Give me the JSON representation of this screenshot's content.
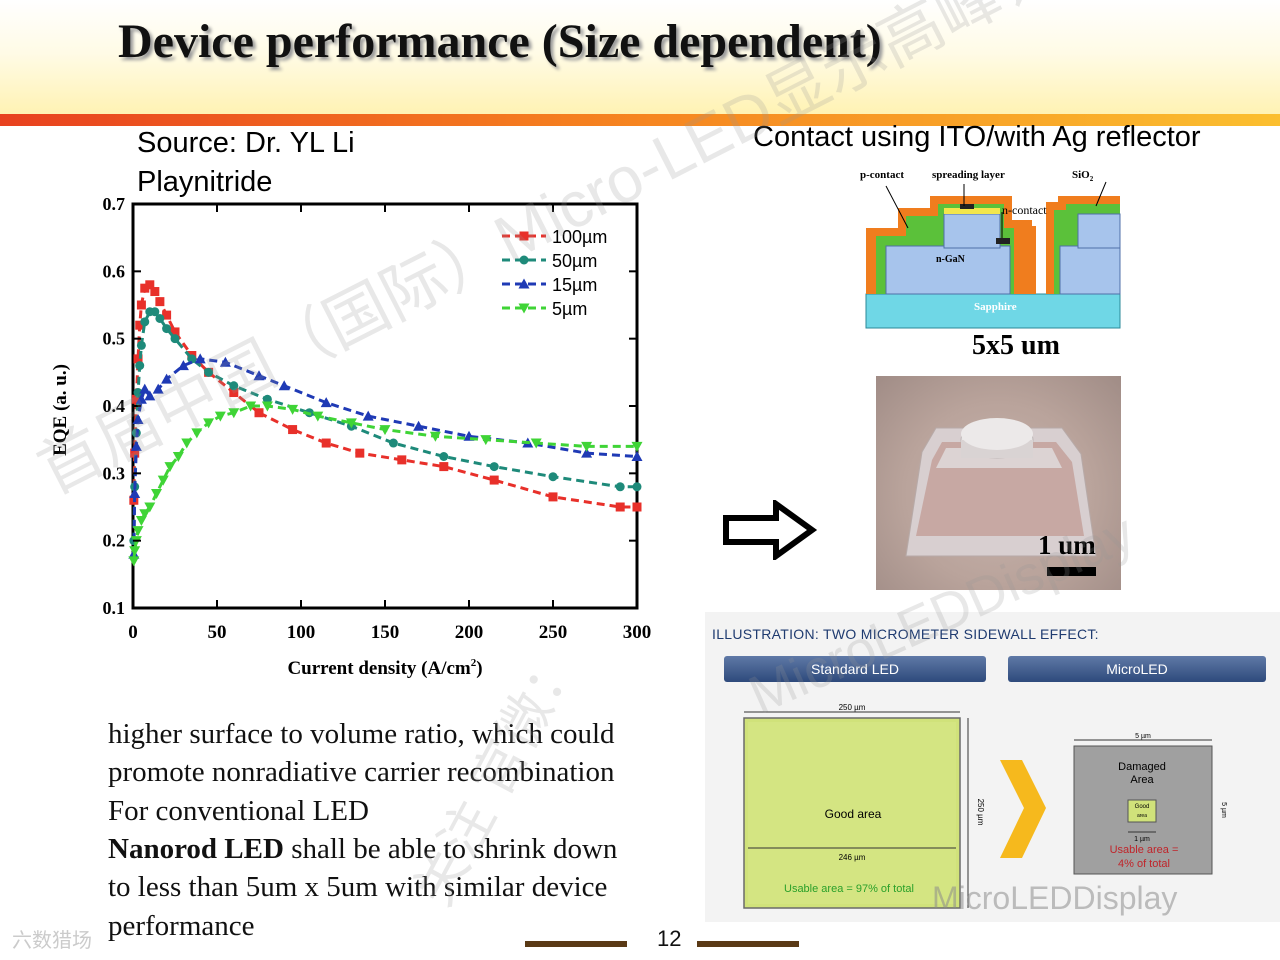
{
  "slide": {
    "title": "Device performance (Size dependent)",
    "source_line1": "Source: Dr. YL Li",
    "source_line2": "Playnitride",
    "contact_caption": "Contact using ITO/with Ag reflector",
    "page_number": "12"
  },
  "body_text": [
    "higher surface to volume ratio, which could",
    "promote nonradiative carrier recombination",
    "For conventional  LED",
    "to less than 5um x 5um with similar device",
    "performance"
  ],
  "body_text_nanorod": {
    "bold": "Nanorod LED",
    "rest": " shall be able to shrink down"
  },
  "cross_section": {
    "labels": {
      "p_contact": "p-contact",
      "spreading_layer": "spreading layer",
      "sio2": "SiO",
      "sio2_sub": "2",
      "n_contact": "n-contact",
      "n_gan": "n-GaN",
      "sapphire": "Sapphire"
    },
    "size_label": "5x5 um",
    "colors": {
      "orange": "#f07d1e",
      "green": "#5bc13a",
      "blue": "#a7c4ec",
      "sapphire": "#6fd7e6"
    }
  },
  "photo": {
    "scale_label": "1 um"
  },
  "illustration": {
    "title": "ILLUSTRATION: TWO MICROMETER SIDEWALL EFFECT:",
    "standard": {
      "tab": "Standard LED",
      "top_dim": "250 µm",
      "side_dim": "250 µm",
      "inner_dim": "246 µm",
      "good_area": "Good area",
      "usable": "Usable area = 97% of total"
    },
    "micro": {
      "tab": "MicroLED",
      "top_dim": "5 µm",
      "side_dim": "5 µm",
      "inner_dim": "1 µm",
      "damaged": "Damaged",
      "damaged2": "Area",
      "good": "Good",
      "good2": "area",
      "usable1": "Usable area =",
      "usable2": "4% of total"
    }
  },
  "watermarks": {
    "diag": "首届中国（国际）Micro-LED显示高峰论坛",
    "diag2": "MicroLEDDisplay",
    "vertical": "关注 官微：",
    "brand": "MicroLEDDisplay",
    "site": "六数猎场"
  },
  "chart_data": {
    "type": "line",
    "xlabel": "Current density (A/cm",
    "xlabel_sup": "2",
    "xlabel_end": ")",
    "ylabel": "EQE (a. u.)",
    "xlim": [
      0,
      300
    ],
    "ylim": [
      0.1,
      0.7
    ],
    "xticks": [
      0,
      50,
      100,
      150,
      200,
      250,
      300
    ],
    "yticks": [
      0.1,
      0.2,
      0.3,
      0.4,
      0.5,
      0.6,
      0.7
    ],
    "ytick_labels": [
      "0.1",
      "0.2",
      "0.3",
      "0.4",
      "0.5",
      "0.6",
      "0.7"
    ],
    "legend_position": "top-right",
    "series": [
      {
        "name": "100µm",
        "color": "#e8302a",
        "marker": "square",
        "x": [
          0.5,
          1,
          2,
          3,
          4,
          5,
          7,
          10,
          13,
          16,
          20,
          25,
          35,
          45,
          60,
          75,
          95,
          115,
          135,
          160,
          185,
          215,
          250,
          290,
          300
        ],
        "y": [
          0.26,
          0.33,
          0.41,
          0.47,
          0.52,
          0.55,
          0.575,
          0.58,
          0.57,
          0.555,
          0.535,
          0.51,
          0.475,
          0.45,
          0.42,
          0.39,
          0.365,
          0.345,
          0.33,
          0.32,
          0.31,
          0.29,
          0.265,
          0.25,
          0.25
        ]
      },
      {
        "name": "50µm",
        "color": "#1e8a7a",
        "marker": "circle",
        "x": [
          0.5,
          1,
          2,
          3,
          4,
          5,
          7,
          10,
          13,
          16,
          20,
          25,
          35,
          45,
          60,
          80,
          105,
          130,
          155,
          185,
          215,
          250,
          290,
          300
        ],
        "y": [
          0.2,
          0.28,
          0.36,
          0.42,
          0.46,
          0.49,
          0.525,
          0.54,
          0.54,
          0.53,
          0.515,
          0.5,
          0.47,
          0.45,
          0.43,
          0.41,
          0.39,
          0.37,
          0.345,
          0.325,
          0.31,
          0.295,
          0.28,
          0.28
        ]
      },
      {
        "name": "15µm",
        "color": "#1f3ab5",
        "marker": "triangle-up",
        "x": [
          0.5,
          1,
          2,
          3,
          5,
          7,
          10,
          15,
          20,
          30,
          40,
          55,
          75,
          90,
          115,
          140,
          170,
          200,
          235,
          270,
          300
        ],
        "y": [
          0.18,
          0.27,
          0.34,
          0.38,
          0.41,
          0.425,
          0.415,
          0.425,
          0.44,
          0.46,
          0.47,
          0.465,
          0.445,
          0.43,
          0.405,
          0.385,
          0.37,
          0.355,
          0.345,
          0.33,
          0.325
        ]
      },
      {
        "name": "5µm",
        "color": "#3fd436",
        "marker": "triangle-down",
        "x": [
          0.5,
          1,
          2,
          3,
          5,
          7,
          10,
          14,
          18,
          22,
          27,
          32,
          38,
          45,
          52,
          60,
          70,
          80,
          95,
          110,
          130,
          150,
          180,
          210,
          240,
          270,
          300
        ],
        "y": [
          0.17,
          0.185,
          0.2,
          0.215,
          0.23,
          0.24,
          0.25,
          0.27,
          0.29,
          0.31,
          0.325,
          0.345,
          0.36,
          0.375,
          0.385,
          0.39,
          0.4,
          0.4,
          0.395,
          0.385,
          0.375,
          0.365,
          0.355,
          0.35,
          0.345,
          0.34,
          0.34
        ]
      }
    ]
  }
}
